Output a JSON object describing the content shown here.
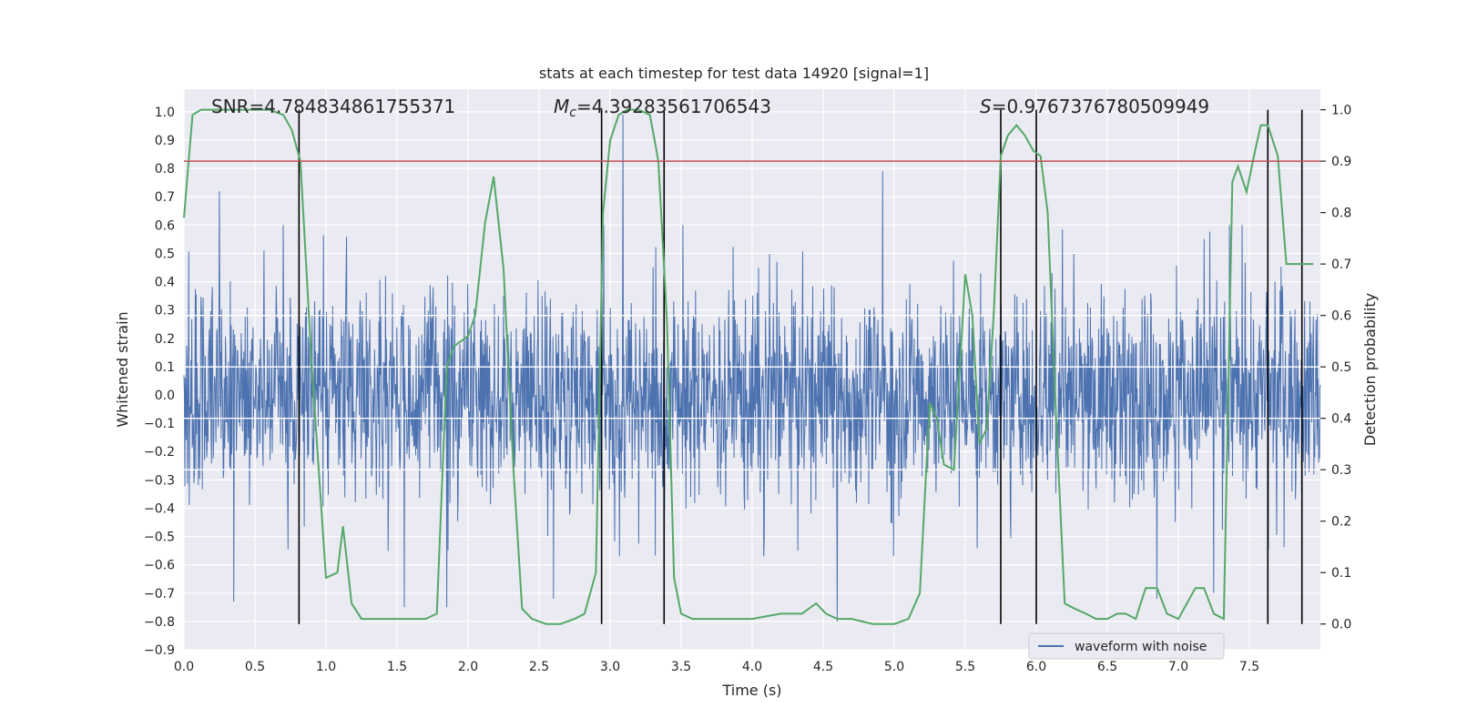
{
  "chart_data": {
    "type": "line",
    "title": "stats at each timestep for test data 14920 [signal=1]",
    "xlabel": "Time (s)",
    "ylabel": "Whitened strain",
    "y2label": "Detection probability",
    "xlim": [
      0.0,
      8.0
    ],
    "ylim": [
      -0.9,
      1.08
    ],
    "y2lim": [
      -0.05,
      1.04
    ],
    "grid": true,
    "xticks": [
      0.0,
      0.5,
      1.0,
      1.5,
      2.0,
      2.5,
      3.0,
      3.5,
      4.0,
      4.5,
      5.0,
      5.5,
      6.0,
      6.5,
      7.0,
      7.5
    ],
    "xtick_labels": [
      "0.0",
      "0.5",
      "1.0",
      "1.5",
      "2.0",
      "2.5",
      "3.0",
      "3.5",
      "4.0",
      "4.5",
      "5.0",
      "5.5",
      "6.0",
      "6.5",
      "7.0",
      "7.5"
    ],
    "yticks": [
      -0.9,
      -0.8,
      -0.7,
      -0.6,
      -0.5,
      -0.4,
      -0.3,
      -0.2,
      -0.1,
      0.0,
      0.1,
      0.2,
      0.3,
      0.4,
      0.5,
      0.6,
      0.7,
      0.8,
      0.9,
      1.0
    ],
    "ytick_labels": [
      "−0.9",
      "−0.8",
      "−0.7",
      "−0.6",
      "−0.5",
      "−0.4",
      "−0.3",
      "−0.2",
      "−0.1",
      "0.0",
      "0.1",
      "0.2",
      "0.3",
      "0.4",
      "0.5",
      "0.6",
      "0.7",
      "0.8",
      "0.9",
      "1.0"
    ],
    "y2ticks": [
      0.0,
      0.1,
      0.2,
      0.3,
      0.4,
      0.5,
      0.6,
      0.7,
      0.8,
      0.9,
      1.0
    ],
    "y2tick_labels": [
      "0.0",
      "0.1",
      "0.2",
      "0.3",
      "0.4",
      "0.5",
      "0.6",
      "0.7",
      "0.8",
      "0.9",
      "1.0"
    ],
    "annotations": {
      "snr": "SNR=4.784834861755371",
      "mc_symbol": "M",
      "mc_subscript": "c",
      "mc_value": "=4.39283561706543",
      "s_symbol": "S",
      "s_value": "=0.9767376780509949"
    },
    "threshold": {
      "value": 0.9,
      "axis": "y2",
      "color": "#c44e52"
    },
    "vertical_lines": [
      0.81,
      2.94,
      3.38,
      5.75,
      6.0,
      7.63,
      7.87
    ],
    "waveform": {
      "name": "waveform with noise",
      "color": "#4c72b0",
      "t_range": [
        0.0,
        8.0
      ],
      "envelope_upper": 0.42,
      "envelope_lower": -0.45,
      "peak_spikes": [
        {
          "t": 0.25,
          "v": 0.72
        },
        {
          "t": 0.35,
          "v": -0.73
        },
        {
          "t": 0.7,
          "v": 0.6
        },
        {
          "t": 1.55,
          "v": -0.75
        },
        {
          "t": 1.85,
          "v": -0.75
        },
        {
          "t": 2.6,
          "v": -0.72
        },
        {
          "t": 3.09,
          "v": 0.99
        },
        {
          "t": 4.6,
          "v": -0.8
        },
        {
          "t": 4.92,
          "v": 0.79
        },
        {
          "t": 6.85,
          "v": -0.72
        },
        {
          "t": 7.25,
          "v": -0.7
        }
      ]
    },
    "legend": {
      "label": "waveform with noise",
      "placement": "bottom-right"
    },
    "detection_probability": {
      "color": "#55a868",
      "t": [
        0.0,
        0.06,
        0.12,
        0.2,
        0.3,
        0.4,
        0.5,
        0.6,
        0.7,
        0.76,
        0.82,
        0.9,
        1.0,
        1.08,
        1.12,
        1.18,
        1.25,
        1.32,
        1.4,
        1.5,
        1.6,
        1.7,
        1.78,
        1.85,
        1.9,
        1.95,
        2.0,
        2.05,
        2.12,
        2.18,
        2.25,
        2.32,
        2.38,
        2.45,
        2.55,
        2.65,
        2.75,
        2.82,
        2.9,
        2.95,
        3.0,
        3.06,
        3.12,
        3.2,
        3.28,
        3.34,
        3.4,
        3.45,
        3.5,
        3.58,
        3.66,
        3.75,
        3.85,
        4.0,
        4.2,
        4.35,
        4.45,
        4.52,
        4.6,
        4.7,
        4.85,
        5.0,
        5.1,
        5.18,
        5.25,
        5.3,
        5.35,
        5.42,
        5.5,
        5.55,
        5.6,
        5.65,
        5.7,
        5.75,
        5.8,
        5.86,
        5.92,
        5.98,
        6.03,
        6.08,
        6.14,
        6.2,
        6.27,
        6.35,
        6.42,
        6.5,
        6.57,
        6.63,
        6.7,
        6.77,
        6.85,
        6.92,
        7.0,
        7.06,
        7.12,
        7.18,
        7.25,
        7.32,
        7.38,
        7.42,
        7.48,
        7.54,
        7.58,
        7.63,
        7.7,
        7.76,
        7.82,
        7.87,
        7.95
      ],
      "p": [
        0.79,
        0.99,
        1.0,
        1.0,
        1.0,
        1.0,
        1.0,
        1.0,
        0.99,
        0.96,
        0.9,
        0.5,
        0.09,
        0.1,
        0.19,
        0.04,
        0.01,
        0.01,
        0.01,
        0.01,
        0.01,
        0.01,
        0.02,
        0.5,
        0.54,
        0.55,
        0.56,
        0.6,
        0.78,
        0.87,
        0.69,
        0.3,
        0.03,
        0.01,
        0.0,
        0.0,
        0.01,
        0.02,
        0.1,
        0.8,
        0.94,
        0.99,
        1.0,
        1.0,
        0.99,
        0.9,
        0.59,
        0.09,
        0.02,
        0.01,
        0.01,
        0.01,
        0.01,
        0.01,
        0.02,
        0.02,
        0.04,
        0.02,
        0.01,
        0.01,
        0.0,
        0.0,
        0.01,
        0.06,
        0.43,
        0.4,
        0.31,
        0.3,
        0.68,
        0.6,
        0.35,
        0.38,
        0.6,
        0.91,
        0.95,
        0.97,
        0.95,
        0.92,
        0.91,
        0.8,
        0.4,
        0.04,
        0.03,
        0.02,
        0.01,
        0.01,
        0.02,
        0.02,
        0.01,
        0.07,
        0.07,
        0.02,
        0.01,
        0.04,
        0.07,
        0.07,
        0.02,
        0.01,
        0.86,
        0.89,
        0.84,
        0.92,
        0.97,
        0.97,
        0.91,
        0.7,
        0.7,
        0.7,
        0.7
      ],
      "label": "Detection probability"
    }
  }
}
